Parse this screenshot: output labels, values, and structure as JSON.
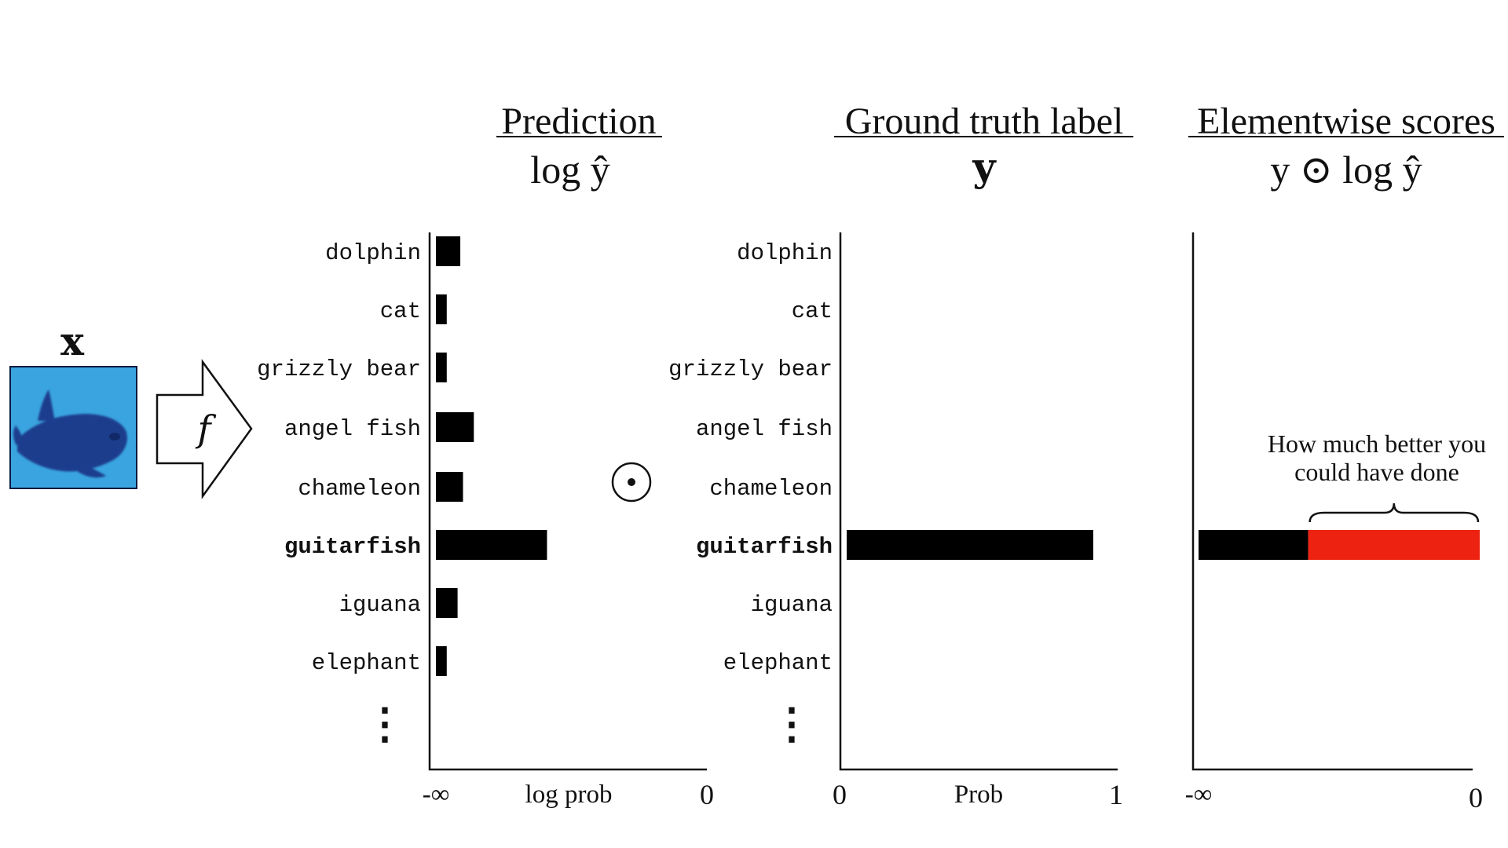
{
  "input": {
    "label": "x",
    "function_label": "f",
    "operator": "⊙"
  },
  "categories": [
    "dolphin",
    "cat",
    "grizzly bear",
    "angel fish",
    "chameleon",
    "guitarfish",
    "iguana",
    "elephant"
  ],
  "highlight_category": "guitarfish",
  "ellipsis": "⋮",
  "colors": {
    "bars": "#000000",
    "gap": "#ee2211",
    "image_bg": "#1f8fd6",
    "fish": "#1f3a8a"
  },
  "panels": {
    "prediction": {
      "title": "Prediction",
      "formula": "log ŷ",
      "axis_left": "-∞",
      "axis_mid": "log prob",
      "axis_right": "0"
    },
    "ground_truth": {
      "title": "Ground truth label",
      "formula": "y",
      "axis_left": "0",
      "axis_mid": "Prob",
      "axis_right": "1"
    },
    "elementwise": {
      "title": "Elementwise scores",
      "formula": "y ⊙ log ŷ",
      "axis_left": "-∞",
      "axis_right": "0",
      "annotation_line1": "How much better you",
      "annotation_line2": "could have done"
    }
  },
  "chart_data": [
    {
      "type": "bar",
      "orientation": "horizontal",
      "title": "Prediction",
      "xlabel": "log prob",
      "categories": [
        "dolphin",
        "cat",
        "grizzly bear",
        "angel fish",
        "chameleon",
        "guitarfish",
        "iguana",
        "elephant"
      ],
      "values": [
        0.09,
        0.04,
        0.04,
        0.14,
        0.1,
        0.41,
        0.08,
        0.04
      ],
      "value_scale": "relative position from -∞ (0) to 0 (1)"
    },
    {
      "type": "bar",
      "orientation": "horizontal",
      "title": "Ground truth label",
      "xlabel": "Prob",
      "categories": [
        "dolphin",
        "cat",
        "grizzly bear",
        "angel fish",
        "chameleon",
        "guitarfish",
        "iguana",
        "elephant"
      ],
      "values": [
        0,
        0,
        0,
        0,
        0,
        0.91,
        0,
        0
      ],
      "xlim": [
        0,
        1
      ]
    },
    {
      "type": "bar",
      "orientation": "horizontal",
      "title": "Elementwise scores",
      "categories": [
        "guitarfish"
      ],
      "values": [
        0.39
      ],
      "gap_to_zero": 0.61,
      "value_scale": "relative position from -∞ (0) to 0 (1)"
    }
  ]
}
